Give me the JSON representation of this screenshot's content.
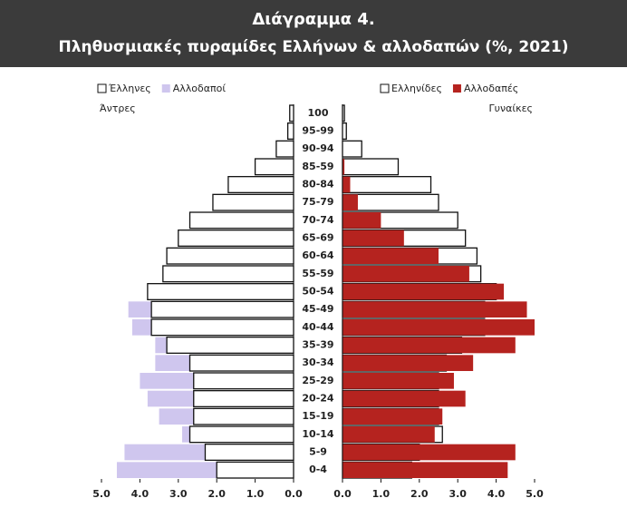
{
  "chart_data": {
    "type": "pyramid",
    "title": [
      "Διάγραμμα 4.",
      "Πληθυσμιακές πυραμίδες Ελλήνων & αλλοδαπών (%, 2021)"
    ],
    "left_label": "Άντρες",
    "right_label": "Γυναίκες",
    "categories": [
      "100",
      "95-99",
      "90-94",
      "85-59",
      "80-84",
      "75-79",
      "70-74",
      "65-69",
      "60-64",
      "55-59",
      "50-54",
      "45-49",
      "40-44",
      "35-39",
      "30-34",
      "25-29",
      "20-24",
      "15-19",
      "10-14",
      "5-9",
      "0-4"
    ],
    "series": [
      {
        "name": "Αλλοδαποί",
        "side": "left",
        "color": "#cfc6ee",
        "values": [
          0,
          0,
          0,
          0,
          0,
          0.1,
          0.5,
          0.8,
          1.1,
          1.6,
          3.5,
          4.3,
          4.2,
          3.6,
          3.6,
          4.0,
          3.8,
          3.5,
          2.9,
          4.4,
          4.6
        ]
      },
      {
        "name": "Έλληνες",
        "side": "left",
        "color": "#ffffff",
        "values": [
          0.1,
          0.15,
          0.45,
          1.0,
          1.7,
          2.1,
          2.7,
          3.0,
          3.3,
          3.4,
          3.8,
          3.7,
          3.7,
          3.3,
          2.7,
          2.6,
          2.6,
          2.6,
          2.7,
          2.3,
          2.0
        ]
      },
      {
        "name": "Ελληνίδες",
        "side": "right",
        "color": "#ffffff",
        "values": [
          0.05,
          0.1,
          0.5,
          1.45,
          2.3,
          2.5,
          3.0,
          3.2,
          3.5,
          3.6,
          4.0,
          3.7,
          3.7,
          3.1,
          2.7,
          2.5,
          2.5,
          2.5,
          2.6,
          2.0,
          1.8
        ]
      },
      {
        "name": "Αλλοδαπές",
        "side": "right",
        "color": "#b5231f",
        "values": [
          0,
          0,
          0,
          0.05,
          0.2,
          0.4,
          1.0,
          1.6,
          2.5,
          3.3,
          4.2,
          4.8,
          5.0,
          4.5,
          3.4,
          2.9,
          3.2,
          2.6,
          2.4,
          4.5,
          4.3
        ]
      }
    ],
    "xlim": [
      0,
      5
    ],
    "xticks_left": [
      {
        "value": 5,
        "label": "5.0"
      },
      {
        "value": 4,
        "label": "4.0"
      },
      {
        "value": 3,
        "label": "3.0"
      },
      {
        "value": 2,
        "label": "2.0"
      },
      {
        "value": 1,
        "label": "1.0"
      },
      {
        "value": 0,
        "label": "0.0"
      }
    ],
    "xticks_right": [
      {
        "value": 0,
        "label": "0.0"
      },
      {
        "value": 1,
        "label": "1.0"
      },
      {
        "value": 2,
        "label": "2.0"
      },
      {
        "value": 3,
        "label": "3.0"
      },
      {
        "value": 4,
        "label": "4.0"
      },
      {
        "value": 5,
        "label": "5.0"
      }
    ]
  }
}
